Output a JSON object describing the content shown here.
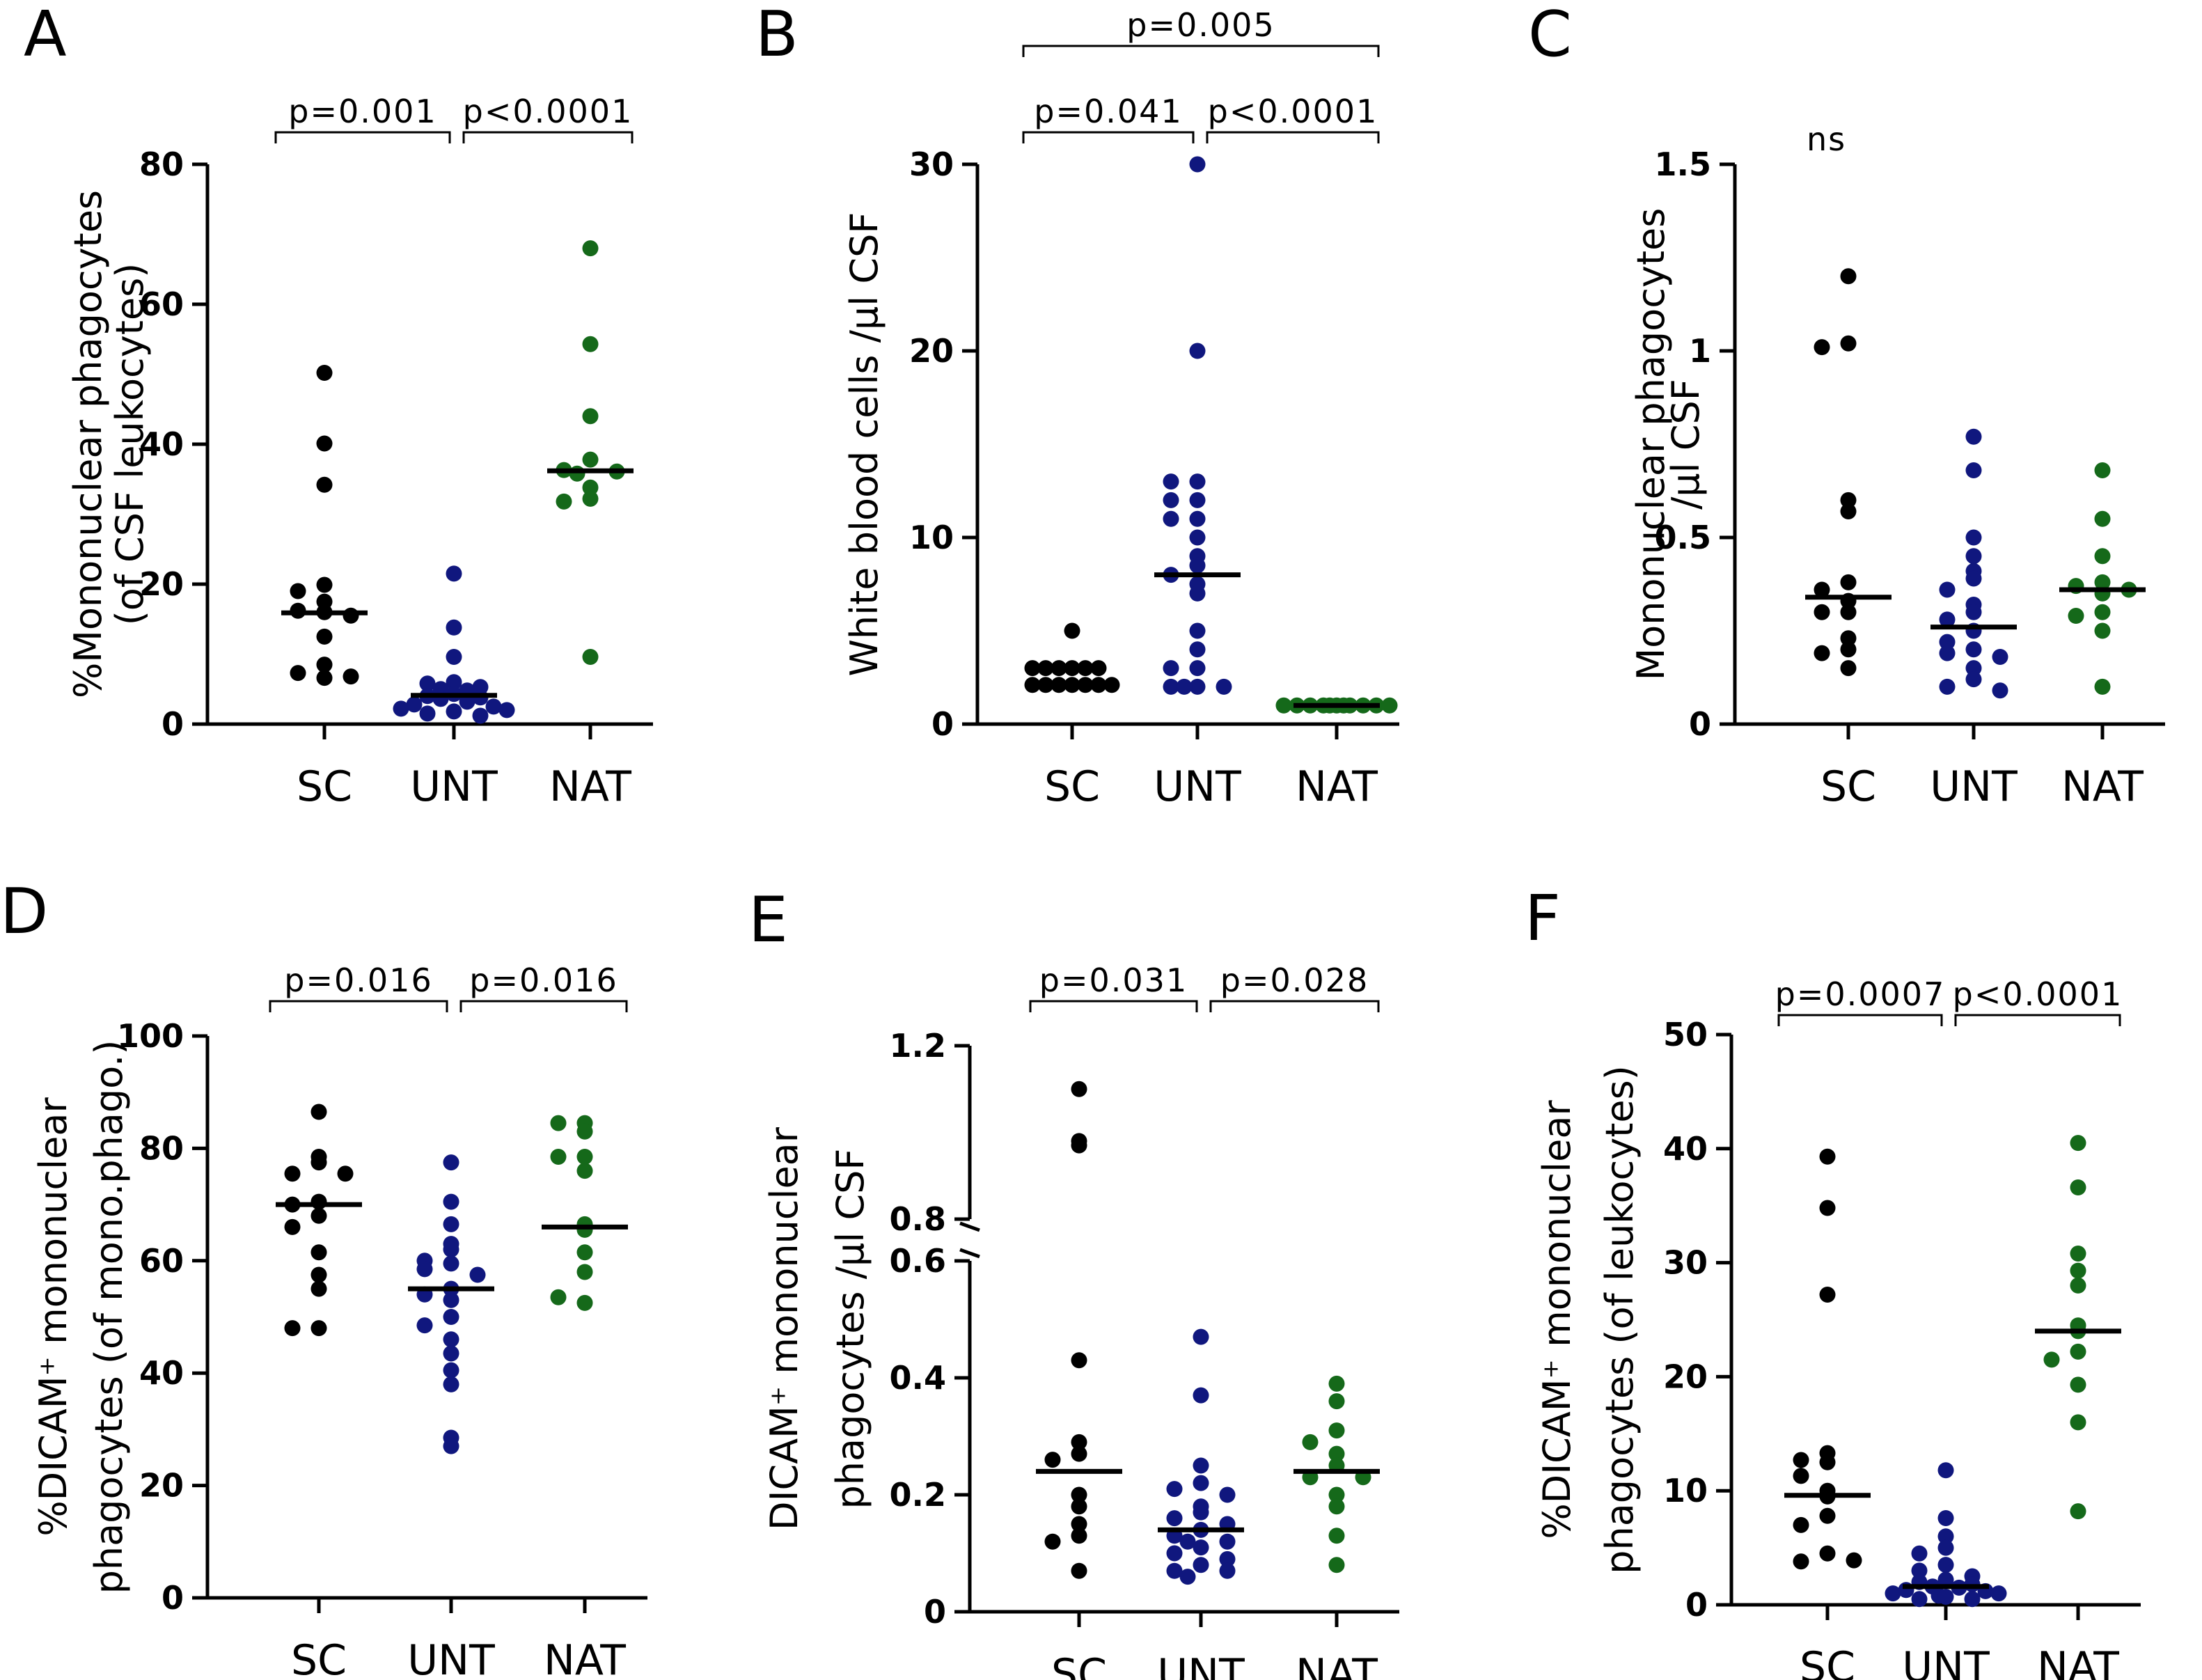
{
  "figure": {
    "colors": {
      "SC": "#000000",
      "UNT": "#10177e",
      "NAT": "#15691a"
    }
  },
  "chart_data": [
    {
      "panel": "A",
      "type": "scatter",
      "title": "",
      "categories": [
        "SC",
        "UNT",
        "NAT"
      ],
      "ylabel": "%Mononuclear phagocytes",
      "ylabel2": "(of CSF leukocytes)",
      "ylim": [
        0,
        80
      ],
      "yticks": [
        0,
        20,
        40,
        60,
        80
      ],
      "tick_labels": [
        "0",
        "20",
        "40",
        "60",
        "80"
      ],
      "series": [
        {
          "name": "SC",
          "values": [
            50.2,
            40.1,
            34.2,
            19.9,
            19,
            17.5,
            16,
            16.2,
            15.5,
            12.5,
            8.5,
            7.3,
            6.6,
            6.8
          ],
          "median": 15.9
        },
        {
          "name": "UNT",
          "values": [
            21.5,
            13.8,
            9.6,
            6,
            5.8,
            5.3,
            5,
            4.8,
            4.3,
            4,
            3.8,
            3.6,
            3.2,
            2.8,
            2.5,
            2.2,
            2,
            1.8,
            1.5,
            1.2
          ],
          "median": 4.1
        },
        {
          "name": "NAT",
          "values": [
            68,
            54.3,
            44,
            37.8,
            36.3,
            36.1,
            35.8,
            33.8,
            32.2,
            31.8,
            9.6
          ],
          "median": 36.2
        }
      ],
      "comparisons": [
        {
          "label": "p=0.001",
          "from": 0,
          "to": 1,
          "level": 1
        },
        {
          "label": "p<0.0001",
          "from": 1,
          "to": 2,
          "level": 1
        }
      ]
    },
    {
      "panel": "B",
      "type": "scatter",
      "title": "",
      "categories": [
        "SC",
        "UNT",
        "NAT"
      ],
      "ylabel": "White blood cells /µl CSF",
      "ylim": [
        0,
        30
      ],
      "yticks": [
        0,
        10,
        20,
        30
      ],
      "tick_labels": [
        "0",
        "10",
        "20",
        "30"
      ],
      "series": [
        {
          "name": "SC",
          "values": [
            5,
            3,
            3,
            3,
            3,
            3,
            3,
            2.1,
            2.1,
            2.1,
            2.1,
            2.1,
            2.1,
            2.1
          ],
          "median": 2.2
        },
        {
          "name": "UNT",
          "values": [
            30,
            20,
            13,
            13,
            12,
            12,
            11,
            11,
            10,
            9,
            8.5,
            8,
            7.5,
            7,
            5,
            4,
            3,
            3,
            2,
            2,
            2,
            2
          ],
          "median": 8
        },
        {
          "name": "NAT",
          "values": [
            1,
            1,
            1,
            1,
            1,
            1,
            1,
            1,
            1,
            1,
            1
          ],
          "median": 1
        }
      ],
      "comparisons": [
        {
          "label": "p=0.041",
          "from": 0,
          "to": 1,
          "level": 1
        },
        {
          "label": "p<0.0001",
          "from": 1,
          "to": 2,
          "level": 1
        },
        {
          "label": "p=0.005",
          "from": 0,
          "to": 2,
          "level": 2
        }
      ]
    },
    {
      "panel": "C",
      "type": "scatter",
      "title": "",
      "categories": [
        "SC",
        "UNT",
        "NAT"
      ],
      "ylabel": "Mononuclear phagocytes",
      "ylabel2": "/µl CSF",
      "ylim": [
        0,
        1.5
      ],
      "yticks": [
        0,
        0.5,
        1,
        1.5
      ],
      "tick_labels": [
        "0",
        "0.5",
        "1",
        "1.5"
      ],
      "series": [
        {
          "name": "SC",
          "values": [
            1.2,
            1.02,
            1.01,
            0.6,
            0.57,
            0.38,
            0.36,
            0.33,
            0.3,
            0.3,
            0.23,
            0.2,
            0.19,
            0.15
          ],
          "median": 0.34
        },
        {
          "name": "UNT",
          "values": [
            0.77,
            0.68,
            0.5,
            0.45,
            0.41,
            0.39,
            0.36,
            0.32,
            0.3,
            0.28,
            0.25,
            0.22,
            0.2,
            0.19,
            0.18,
            0.15,
            0.12,
            0.1,
            0.09
          ],
          "median": 0.26
        },
        {
          "name": "NAT",
          "values": [
            0.68,
            0.55,
            0.45,
            0.38,
            0.37,
            0.36,
            0.35,
            0.3,
            0.29,
            0.25,
            0.1
          ],
          "median": 0.36
        }
      ],
      "comparisons": [
        {
          "label": "ns",
          "from": 0,
          "to": 0,
          "level": 0
        }
      ]
    },
    {
      "panel": "D",
      "type": "scatter",
      "title": "",
      "categories": [
        "SC",
        "UNT",
        "NAT"
      ],
      "ylabel": "%DICAM⁺ mononuclear",
      "ylabel2": "phagocytes (of mono.phago.)",
      "ylim": [
        0,
        100
      ],
      "yticks": [
        0,
        20,
        40,
        60,
        80,
        100
      ],
      "tick_labels": [
        "0",
        "20",
        "40",
        "60",
        "80",
        "100"
      ],
      "series": [
        {
          "name": "SC",
          "values": [
            86.5,
            78.5,
            77.5,
            75.5,
            75.5,
            70.5,
            70,
            68,
            66,
            61.5,
            57.5,
            55,
            48,
            48
          ],
          "median": 70
        },
        {
          "name": "UNT",
          "values": [
            77.5,
            70.5,
            66.5,
            63,
            62,
            60,
            59.5,
            58.5,
            57.5,
            55,
            54,
            53,
            50,
            48.5,
            46,
            43.5,
            40.5,
            38,
            28.5,
            27
          ],
          "median": 55
        },
        {
          "name": "NAT",
          "values": [
            84.5,
            84.5,
            83,
            78.5,
            78.5,
            76,
            66.5,
            65.5,
            61.5,
            58,
            52.5,
            53.5
          ],
          "median": 66
        }
      ],
      "comparisons": [
        {
          "label": "p=0.016",
          "from": 0,
          "to": 1,
          "level": 1
        },
        {
          "label": "p=0.016",
          "from": 1,
          "to": 2,
          "level": 1
        }
      ]
    },
    {
      "panel": "E",
      "type": "scatter",
      "title": "",
      "categories": [
        "SC",
        "UNT",
        "NAT"
      ],
      "ylabel": "DICAM⁺ mononuclear",
      "ylabel2": "phagocytes /µl CSF",
      "ylim": [
        0,
        1.2
      ],
      "axis_break": [
        0.6,
        0.8
      ],
      "yticks": [
        0,
        0.2,
        0.4,
        0.6,
        0.8,
        1.2
      ],
      "tick_labels": [
        "0",
        "0.2",
        "0.4",
        "0.6",
        "0.8",
        "1.2"
      ],
      "series": [
        {
          "name": "SC",
          "values": [
            1.1,
            0.98,
            0.97,
            0.43,
            0.29,
            0.27,
            0.26,
            0.2,
            0.18,
            0.15,
            0.13,
            0.12,
            0.07
          ],
          "median": 0.24
        },
        {
          "name": "UNT",
          "values": [
            0.47,
            0.37,
            0.25,
            0.22,
            0.21,
            0.2,
            0.18,
            0.17,
            0.16,
            0.15,
            0.14,
            0.13,
            0.12,
            0.12,
            0.11,
            0.1,
            0.09,
            0.08,
            0.07,
            0.07,
            0.06
          ],
          "median": 0.14
        },
        {
          "name": "NAT",
          "values": [
            0.39,
            0.36,
            0.31,
            0.29,
            0.27,
            0.25,
            0.23,
            0.23,
            0.2,
            0.18,
            0.13,
            0.08
          ],
          "median": 0.24
        }
      ],
      "comparisons": [
        {
          "label": "p=0.031",
          "from": 0,
          "to": 1,
          "level": 1
        },
        {
          "label": "p=0.028",
          "from": 1,
          "to": 2,
          "level": 1
        }
      ]
    },
    {
      "panel": "F",
      "type": "scatter",
      "title": "",
      "categories": [
        "SC",
        "UNT",
        "NAT"
      ],
      "ylabel": "%DICAM⁺ mononuclear",
      "ylabel2": "phagocytes (of leukocytes)",
      "ylim": [
        0,
        50
      ],
      "yticks": [
        0,
        10,
        20,
        30,
        40,
        50
      ],
      "tick_labels": [
        "0",
        "10",
        "20",
        "30",
        "40",
        "50"
      ],
      "series": [
        {
          "name": "SC",
          "values": [
            39.3,
            34.8,
            27.2,
            13.3,
            12.7,
            12.5,
            11.3,
            10,
            9.5,
            7.8,
            7,
            4.5,
            3.8,
            3.9
          ],
          "median": 9.6
        },
        {
          "name": "UNT",
          "values": [
            11.8,
            7.6,
            6,
            5,
            4.5,
            3.5,
            3,
            2.5,
            2.2,
            2,
            1.8,
            1.6,
            1.5,
            1.3,
            1.2,
            1,
            1,
            0.8,
            0.7,
            0.5,
            0.5
          ],
          "median": 1.6
        },
        {
          "name": "NAT",
          "values": [
            40.5,
            36.6,
            30.8,
            29.3,
            28,
            24.5,
            24,
            22.2,
            21.5,
            19.3,
            16,
            8.2
          ],
          "median": 24
        }
      ],
      "comparisons": [
        {
          "label": "p=0.0007",
          "from": 0,
          "to": 1,
          "level": 1
        },
        {
          "label": "p<0.0001",
          "from": 1,
          "to": 2,
          "level": 1
        }
      ]
    }
  ]
}
